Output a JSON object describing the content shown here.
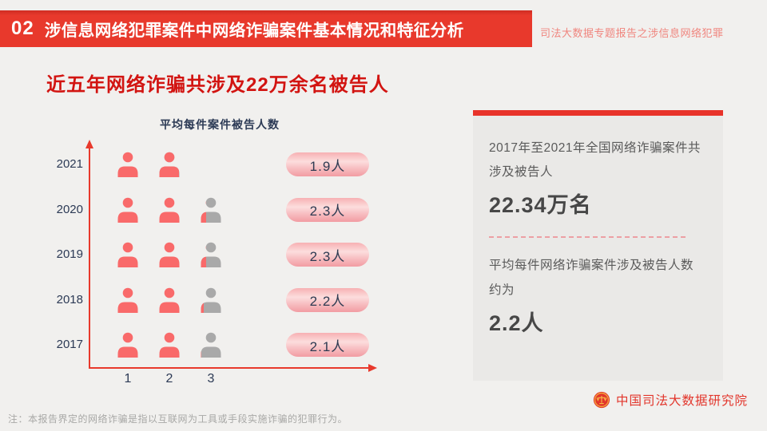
{
  "header": {
    "number": "02",
    "title": "涉信息网络犯罪案件中网络诈骗案件基本情况和特征分析",
    "watermark": "司法大数据专题报告之涉信息网络犯罪"
  },
  "main_title": "近五年网络诈骗共涉及22万余名被告人",
  "chart_data": {
    "type": "bar",
    "subtype": "pictogram",
    "title": "平均每件案件被告人数",
    "categories": [
      "2021",
      "2020",
      "2019",
      "2018",
      "2017"
    ],
    "values": [
      1.9,
      2.3,
      2.3,
      2.2,
      2.1
    ],
    "value_labels": [
      "1.9人",
      "2.3人",
      "2.3人",
      "2.2人",
      "2.1人"
    ],
    "x_ticks": [
      "1",
      "2",
      "3"
    ],
    "xlim": [
      0,
      3
    ],
    "icon": "person-icon",
    "icon_full_color": "#f96a6a",
    "icon_empty_color": "#a9a9a9",
    "axis_color": "#e8392c",
    "legend_position": "none",
    "grid": false
  },
  "info_card": {
    "line1": "2017年至2021年全国网络诈骗案件共涉及被告人",
    "value1": "22.34万名",
    "line2": "平均每件网络诈骗案件涉及被告人数约为",
    "value2": "2.2人"
  },
  "footer": {
    "note": "注：本报告界定的网络诈骗是指以互联网为工具或手段实施诈骗的犯罪行为。",
    "org": "中国司法大数据研究院"
  },
  "colors": {
    "banner_red": "#e8392c",
    "title_red": "#d21411",
    "navy_text": "#2c3a55",
    "card_bg": "#eae9e7",
    "pill_text": "#2e3b52",
    "org_red": "#e2352b"
  }
}
